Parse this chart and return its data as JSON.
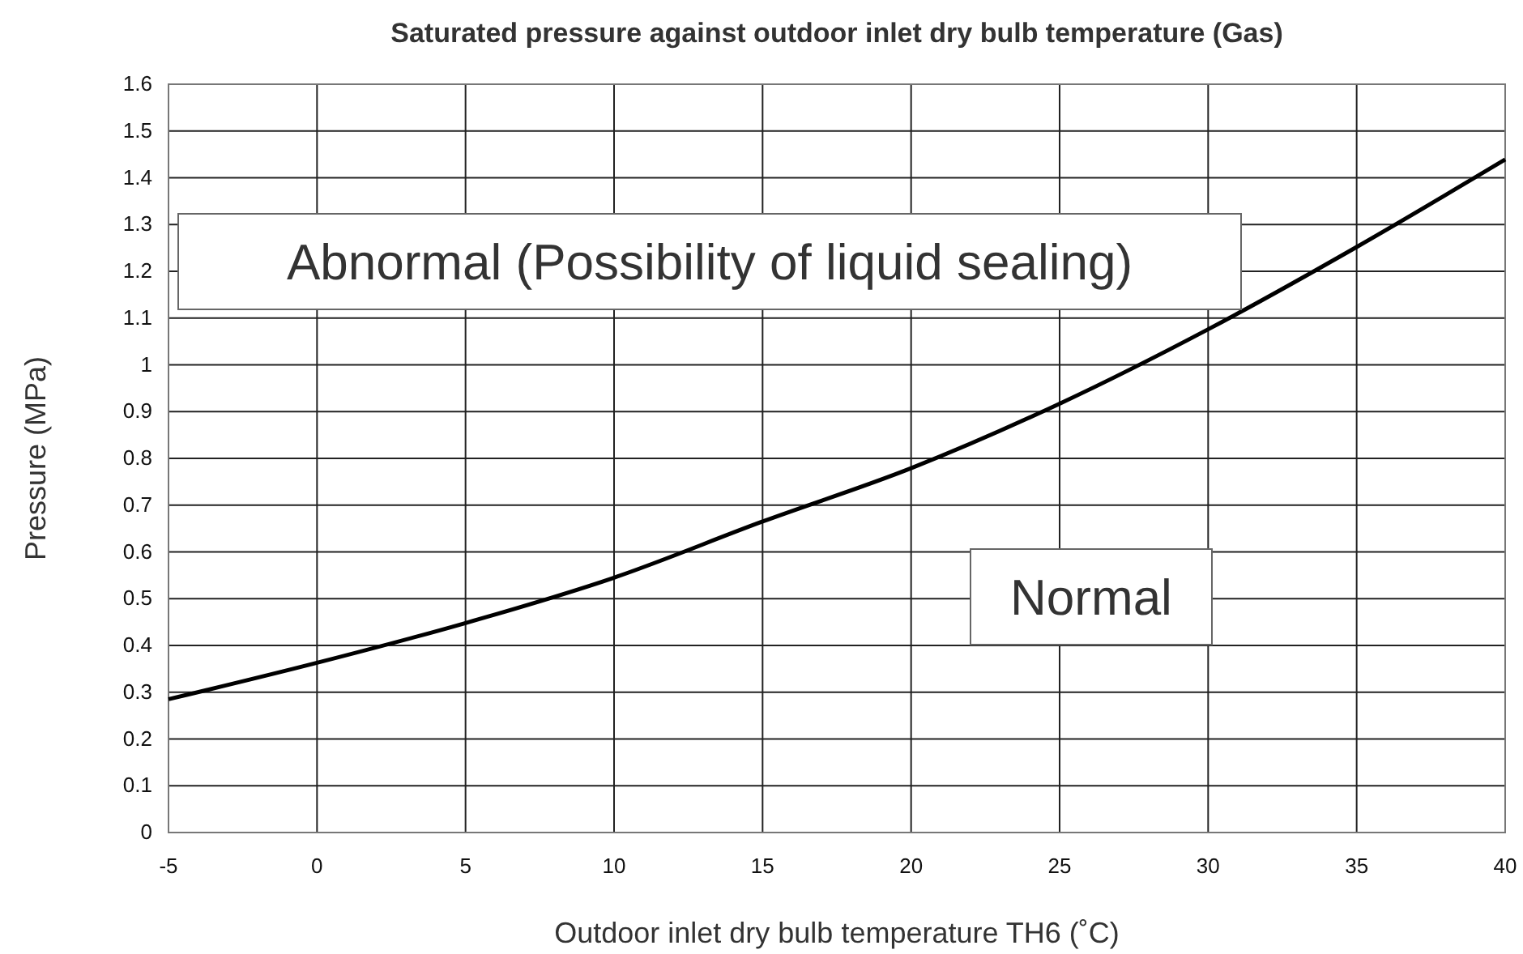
{
  "chart_data": {
    "type": "line",
    "title": "Saturated pressure against outdoor inlet dry bulb temperature (Gas)",
    "xlabel": "Outdoor inlet dry bulb temperature TH6 (˚C)",
    "ylabel": "Pressure (MPa)",
    "x": [
      -5,
      0,
      5,
      10,
      15,
      20,
      25,
      30,
      35,
      40
    ],
    "series": [
      {
        "color": "#000000",
        "values": [
          0.285,
          0.363,
          0.448,
          0.545,
          0.665,
          0.779,
          0.917,
          1.076,
          1.252,
          1.439
        ]
      }
    ],
    "xlim": [
      -5,
      40
    ],
    "xticks": [
      -5,
      0,
      5,
      10,
      15,
      20,
      25,
      30,
      35,
      40
    ],
    "ylim": [
      0,
      1.6
    ],
    "yticks": [
      0,
      0.1,
      0.2,
      0.3,
      0.4,
      0.5,
      0.6,
      0.7,
      0.8,
      0.9,
      {
        "value": 1,
        "label": "1"
      },
      1.1,
      1.2,
      1.3,
      1.4,
      1.5,
      1.6
    ],
    "grid": true,
    "marker": "none",
    "line_style": "solid",
    "annotations": [
      "Abnormal (Possibility of liquid sealing)",
      "Normal"
    ]
  }
}
